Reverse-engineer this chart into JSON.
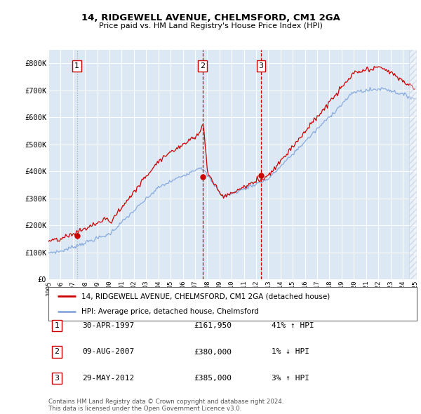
{
  "title1": "14, RIDGEWELL AVENUE, CHELMSFORD, CM1 2GA",
  "title2": "Price paid vs. HM Land Registry's House Price Index (HPI)",
  "legend_line1": "14, RIDGEWELL AVENUE, CHELMSFORD, CM1 2GA (detached house)",
  "legend_line2": "HPI: Average price, detached house, Chelmsford",
  "table_rows": [
    {
      "num": "1",
      "date": "30-APR-1997",
      "price": "£161,950",
      "hpi": "41% ↑ HPI"
    },
    {
      "num": "2",
      "date": "09-AUG-2007",
      "price": "£380,000",
      "hpi": "1% ↓ HPI"
    },
    {
      "num": "3",
      "date": "29-MAY-2012",
      "price": "£385,000",
      "hpi": "3% ↑ HPI"
    }
  ],
  "footer1": "Contains HM Land Registry data © Crown copyright and database right 2024.",
  "footer2": "This data is licensed under the Open Government Licence v3.0.",
  "plot_bg_color": "#dce9f5",
  "red_line_color": "#cc0000",
  "blue_line_color": "#88aadd",
  "sale_marker_color": "#cc0000",
  "ylim": [
    0,
    850000
  ],
  "yticks": [
    0,
    100000,
    200000,
    300000,
    400000,
    500000,
    600000,
    700000,
    800000
  ],
  "ytick_labels": [
    "£0",
    "£100K",
    "£200K",
    "£300K",
    "£400K",
    "£500K",
    "£600K",
    "£700K",
    "£800K"
  ],
  "sale_dates": [
    1997.33,
    2007.61,
    2012.41
  ],
  "sale_prices": [
    161950,
    380000,
    385000
  ],
  "sale_labels": [
    "1",
    "2",
    "3"
  ],
  "sale_vline_colors": [
    "#aaaaaa",
    "#cc0000",
    "#cc0000"
  ],
  "sale_vline_styles": [
    "dotted",
    "dashed",
    "dashed"
  ]
}
